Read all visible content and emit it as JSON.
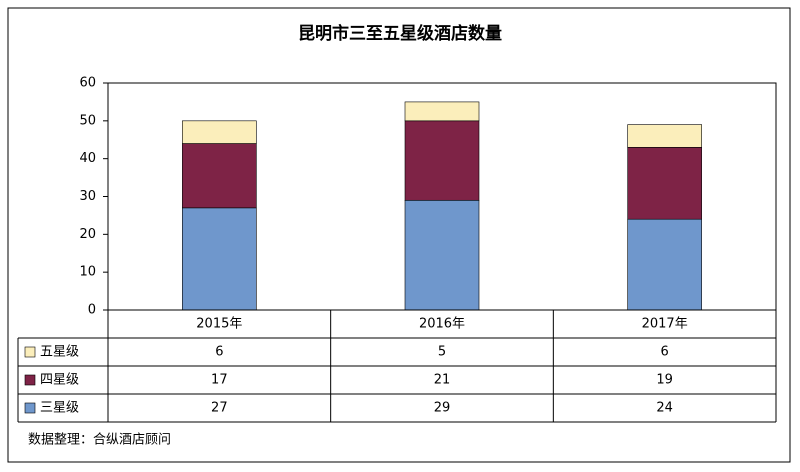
{
  "chart_data": {
    "type": "bar",
    "stacked": true,
    "title": "昆明市三至五星级酒店数量",
    "categories": [
      "2015年",
      "2016年",
      "2017年"
    ],
    "series": [
      {
        "name": "三星级",
        "color": "#6f97cc",
        "values": [
          27,
          29,
          24
        ]
      },
      {
        "name": "四星级",
        "color": "#7e2346",
        "values": [
          17,
          21,
          19
        ]
      },
      {
        "name": "五星级",
        "color": "#fbeebb",
        "values": [
          6,
          5,
          6
        ]
      }
    ],
    "ylim": [
      0,
      60
    ],
    "yticks": [
      0,
      10,
      20,
      30,
      40,
      50,
      60
    ],
    "grid": false,
    "source": "数据整理：合纵酒店顾问"
  }
}
